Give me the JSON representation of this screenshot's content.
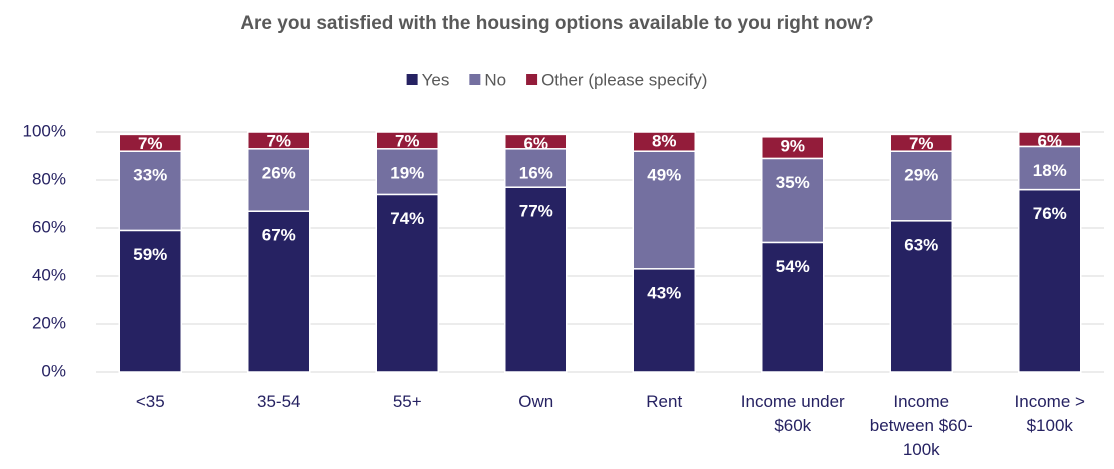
{
  "chart_data": {
    "type": "stacked_bar",
    "title": "Are you satisfied with the housing options available to you right now?",
    "categories": [
      "<35",
      "35-54",
      "55+",
      "Own",
      "Rent",
      "Income under $60k",
      "Income between $60-100k",
      "Income > $100k"
    ],
    "series": [
      {
        "name": "Yes",
        "color": "#262262",
        "values": [
          59,
          67,
          74,
          77,
          43,
          54,
          63,
          76
        ],
        "value_labels": [
          "59%",
          "67%",
          "74%",
          "77%",
          "43%",
          "54%",
          "63%",
          "76%"
        ]
      },
      {
        "name": "No",
        "color": "#7470a0",
        "values": [
          33,
          26,
          19,
          16,
          49,
          35,
          29,
          18
        ],
        "value_labels": [
          "33%",
          "26%",
          "19%",
          "16%",
          "49%",
          "35%",
          "29%",
          "18%"
        ]
      },
      {
        "name": "Other (please specify)",
        "color": "#931c3a",
        "values": [
          7,
          7,
          7,
          6,
          8,
          9,
          7,
          6
        ],
        "value_labels": [
          "7%",
          "7%",
          "7%",
          "6%",
          "8%",
          "9%",
          "7%",
          "6%"
        ]
      }
    ],
    "ylim": [
      0,
      100
    ],
    "yticks": [
      {
        "value": 0,
        "label": "0%"
      },
      {
        "value": 20,
        "label": "20%"
      },
      {
        "value": 40,
        "label": "40%"
      },
      {
        "value": 60,
        "label": "60%"
      },
      {
        "value": 80,
        "label": "80%"
      },
      {
        "value": 100,
        "label": "100%"
      }
    ],
    "grid": true,
    "legend": "top"
  }
}
